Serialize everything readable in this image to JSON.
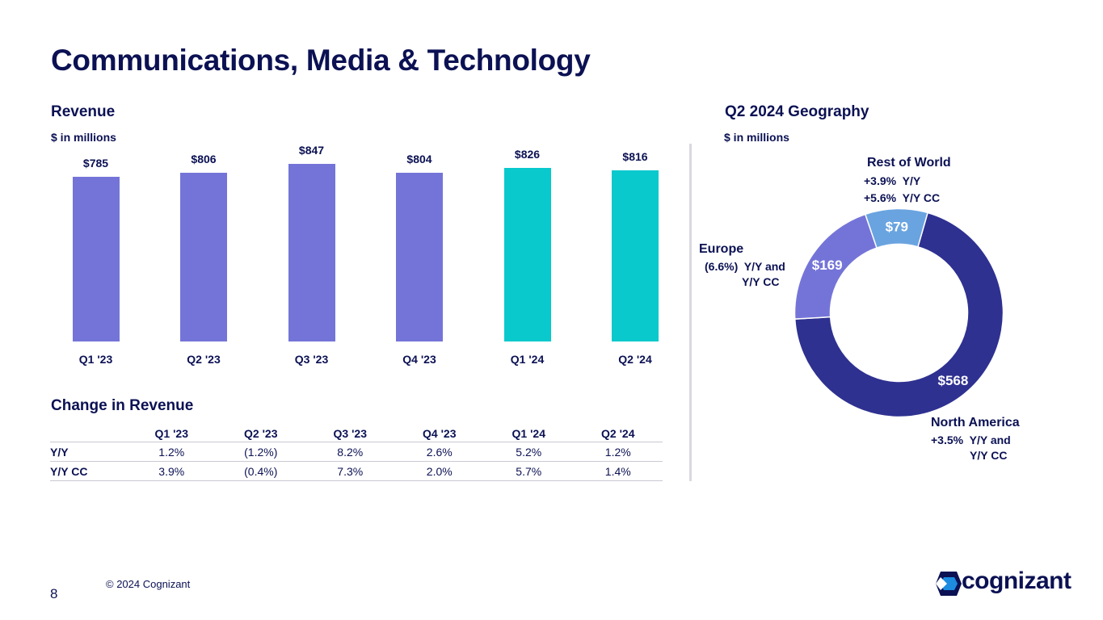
{
  "page_title": "Communications, Media & Technology",
  "revenue_title": "Revenue",
  "revenue_unit": "$ in millions",
  "change_title": "Change in Revenue",
  "geo_title": "Q2 2024 Geography",
  "geo_unit": "$ in millions",
  "colors": {
    "navy": "#0b1153",
    "bar_purple": "#7474d8",
    "bar_teal": "#09c9cd",
    "geo_north_america": "#2e3190",
    "geo_europe": "#7474d8",
    "geo_rest": "#6aa4e0"
  },
  "chart_data": [
    {
      "type": "bar",
      "title": "Revenue",
      "ylabel": "$ in millions",
      "categories": [
        "Q1 '23",
        "Q2 '23",
        "Q3 '23",
        "Q4 '23",
        "Q1 '24",
        "Q2 '24"
      ],
      "values": [
        785,
        806,
        847,
        804,
        826,
        816
      ],
      "value_labels": [
        "$785",
        "$806",
        "$847",
        "$804",
        "$826",
        "$816"
      ],
      "highlight": [
        false,
        false,
        false,
        false,
        true,
        true
      ],
      "ylim": [
        0,
        847
      ]
    },
    {
      "type": "pie",
      "title": "Q2 2024 Geography",
      "donut": true,
      "segments": [
        {
          "name": "North America",
          "value": 568,
          "label": "$568"
        },
        {
          "name": "Europe",
          "value": 169,
          "label": "$169"
        },
        {
          "name": "Rest of World",
          "value": 79,
          "label": "$79"
        }
      ]
    }
  ],
  "change_table": {
    "headers": [
      "",
      "Q1 '23",
      "Q2 '23",
      "Q3 '23",
      "Q4 '23",
      "Q1 '24",
      "Q2 '24"
    ],
    "rows": [
      {
        "label": "Y/Y",
        "values": [
          "1.2%",
          "(1.2%)",
          "8.2%",
          "2.6%",
          "5.2%",
          "1.2%"
        ]
      },
      {
        "label": "Y/Y CC",
        "values": [
          "3.9%",
          "(0.4%)",
          "7.3%",
          "2.0%",
          "5.7%",
          "1.4%"
        ]
      }
    ]
  },
  "geo_callouts": {
    "rest_of_world": {
      "name": "Rest of World",
      "line1_pct": "+3.9%",
      "line1_text": "Y/Y",
      "line2_pct": "+5.6%",
      "line2_text": "Y/Y CC"
    },
    "europe": {
      "name": "Europe",
      "line1_pct": "(6.6%)",
      "line1_text": "Y/Y and",
      "line2_text": "Y/Y CC"
    },
    "north_america": {
      "name": "North America",
      "line1_pct": "+3.5%",
      "line1_text": "Y/Y and",
      "line2_text": "Y/Y CC"
    }
  },
  "footer": {
    "page_number": "8",
    "copyright": "© 2024 Cognizant",
    "logo_text": "cognizant"
  }
}
